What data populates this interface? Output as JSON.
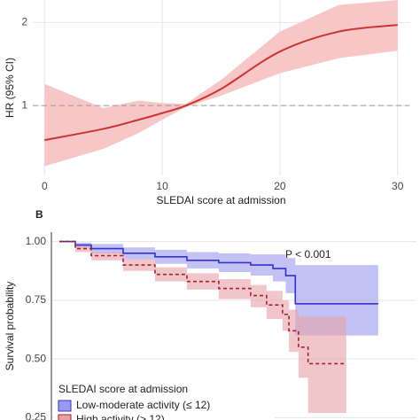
{
  "chart_data": [
    {
      "type": "line",
      "ylabel": "HR (95% CI)",
      "xlabel": "SLEDAI score at admission",
      "x": [
        0,
        5,
        8,
        10,
        12,
        15,
        20,
        25,
        30
      ],
      "series": [
        {
          "color": "#cc3333",
          "band_color": "#f7c6c6",
          "values": [
            0.585,
            0.72,
            0.83,
            0.91,
            1.0,
            1.2,
            1.65,
            1.89,
            1.97
          ],
          "lower": [
            0.27,
            0.48,
            0.67,
            0.83,
            0.98,
            1.12,
            1.39,
            1.57,
            1.66
          ],
          "upper": [
            1.26,
            0.97,
            1.06,
            1.03,
            1.02,
            1.31,
            1.89,
            2.21,
            2.27
          ]
        }
      ],
      "refline": 1,
      "xlim": [
        -1,
        31
      ],
      "xticks": [
        0,
        10,
        20,
        30
      ],
      "ylim": [
        0.16,
        2.27
      ],
      "yticks": [
        1,
        2
      ],
      "grid": true
    },
    {
      "type": "step",
      "label": "B",
      "ylabel": "Survival probability",
      "annotation": "P < 0.001",
      "legend_title": "SLEDAI score at admission",
      "legend": "bottom-left",
      "xlim": [
        -0.025,
        1.12
      ],
      "ylim": [
        0.24,
        1.04
      ],
      "yticks": [
        {
          "value": 1,
          "label": "1.00"
        },
        {
          "value": 0.75,
          "label": "0.75"
        },
        {
          "value": 0.5,
          "label": "0.50"
        },
        {
          "value": 0.25,
          "label": "0.25"
        }
      ],
      "grid": true,
      "series": [
        {
          "name": "Low-moderate activity (≤ 12)",
          "color": "#3333cc",
          "band_color": "#9999ee",
          "dash": false,
          "x": [
            0,
            0.05,
            0.1,
            0.2,
            0.3,
            0.4,
            0.5,
            0.6,
            0.67,
            0.71,
            0.74,
            1.0
          ],
          "values": [
            1,
            0.985,
            0.97,
            0.95,
            0.935,
            0.92,
            0.91,
            0.9,
            0.885,
            0.855,
            0.735,
            0.735
          ],
          "upper": [
            1,
            0.995,
            0.99,
            0.975,
            0.965,
            0.955,
            0.95,
            0.945,
            0.945,
            0.93,
            0.9,
            0.9
          ],
          "lower": [
            1,
            0.975,
            0.95,
            0.925,
            0.905,
            0.885,
            0.87,
            0.855,
            0.83,
            0.78,
            0.6,
            0.6
          ]
        },
        {
          "name": "High activity (> 12)",
          "color": "#aa1f2e",
          "band_color": "#e8a0a8",
          "dash": true,
          "x": [
            0,
            0.05,
            0.1,
            0.2,
            0.3,
            0.4,
            0.5,
            0.6,
            0.65,
            0.7,
            0.72,
            0.75,
            0.78,
            0.9
          ],
          "values": [
            1,
            0.97,
            0.94,
            0.9,
            0.86,
            0.83,
            0.8,
            0.77,
            0.73,
            0.69,
            0.62,
            0.55,
            0.48,
            0.48
          ],
          "upper": [
            1,
            0.98,
            0.955,
            0.925,
            0.89,
            0.865,
            0.84,
            0.815,
            0.79,
            0.75,
            0.71,
            0.68,
            0.68,
            0.68
          ],
          "lower": [
            1,
            0.955,
            0.92,
            0.875,
            0.83,
            0.795,
            0.755,
            0.72,
            0.67,
            0.62,
            0.53,
            0.42,
            0.27,
            0.27
          ]
        }
      ]
    }
  ]
}
